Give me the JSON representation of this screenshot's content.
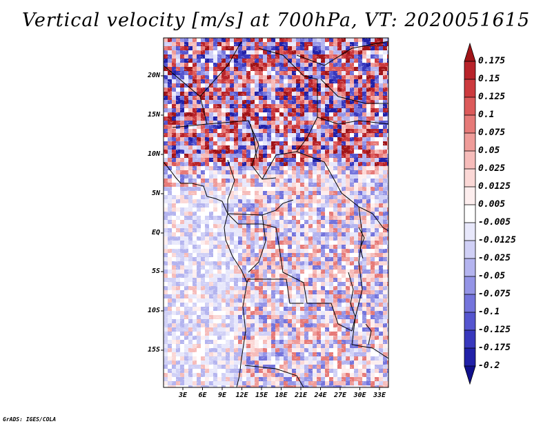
{
  "title": "Vertical velocity [m/s] at 700hPa, VT: 2020051615",
  "credit": "GrADS: IGES/COLA",
  "map": {
    "variable": "Vertical velocity",
    "units": "m/s",
    "level": "700hPa",
    "valid_time": "2020051615",
    "lat_labels": [
      "20N",
      "15N",
      "10N",
      "5N",
      "EQ",
      "5S",
      "10S",
      "15S"
    ],
    "lon_labels": [
      "3E",
      "6E",
      "9E",
      "12E",
      "15E",
      "18E",
      "21E",
      "24E",
      "27E",
      "30E",
      "33E"
    ]
  },
  "colorbar": {
    "labels": [
      "0.175",
      "0.15",
      "0.125",
      "0.1",
      "0.075",
      "0.05",
      "0.025",
      "0.0125",
      "0.005",
      "-0.005",
      "-0.0125",
      "-0.025",
      "-0.05",
      "-0.075",
      "-0.1",
      "-0.125",
      "-0.175",
      "-0.2"
    ],
    "colors": [
      "#a01418",
      "#b8232a",
      "#cc3a3e",
      "#dc5a5a",
      "#e67a78",
      "#ef9c99",
      "#f6bcba",
      "#fbd8d6",
      "#fdeeee",
      "#ffffff",
      "#e8e8fb",
      "#d0d0f6",
      "#b4b4ef",
      "#9494e6",
      "#7474dc",
      "#5555cf",
      "#3838bd",
      "#2121a8",
      "#10108c"
    ]
  }
}
